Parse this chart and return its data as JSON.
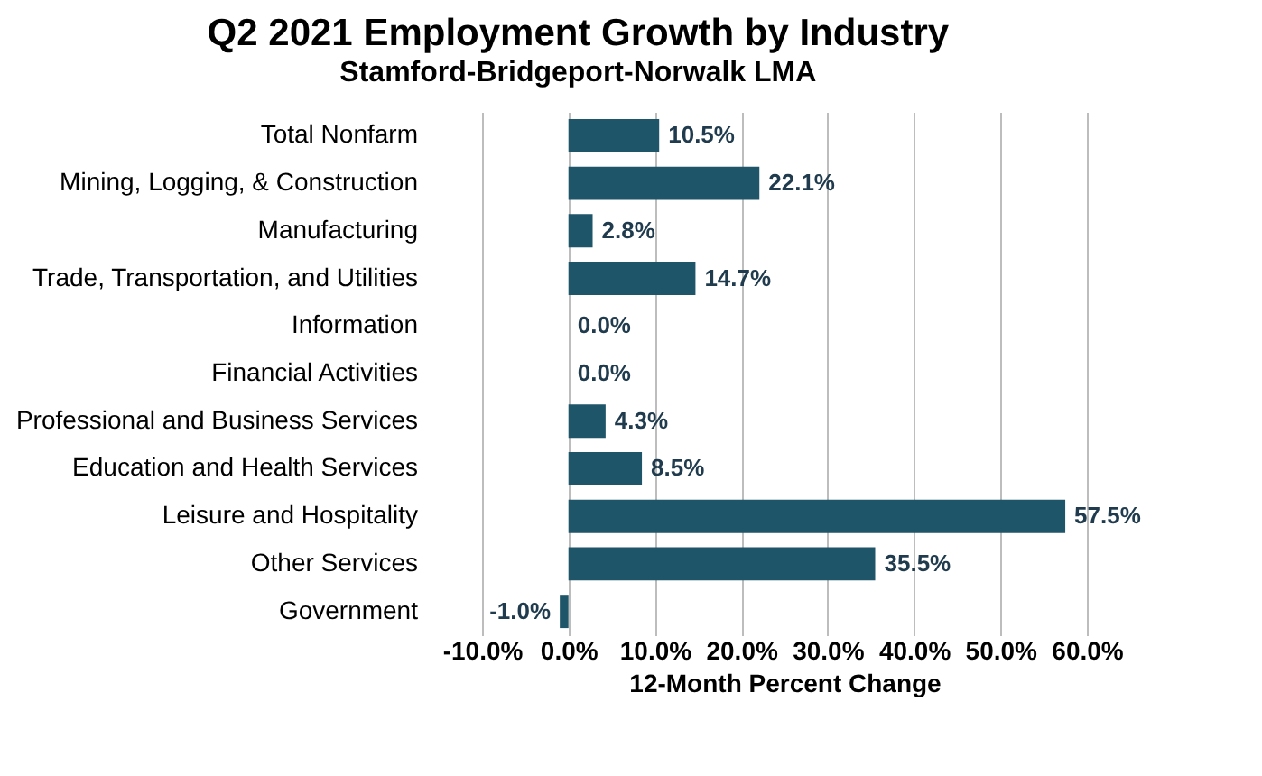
{
  "chart_data": {
    "type": "bar",
    "orientation": "horizontal",
    "title": "Q2 2021 Employment Growth by Industry",
    "subtitle": "Stamford-Bridgeport-Norwalk LMA",
    "xlabel": "12-Month Percent Change",
    "categories": [
      "Total Nonfarm",
      "Mining, Logging, & Construction",
      "Manufacturing",
      "Trade, Transportation, and Utilities",
      "Information",
      "Financial Activities",
      "Professional and Business Services",
      "Education and Health Services",
      "Leisure and Hospitality",
      "Other Services",
      "Government"
    ],
    "values": [
      10.5,
      22.1,
      2.8,
      14.7,
      0.0,
      0.0,
      4.3,
      8.5,
      57.5,
      35.5,
      -1.0
    ],
    "value_labels": [
      "10.5%",
      "22.1%",
      "2.8%",
      "14.7%",
      "0.0%",
      "0.0%",
      "4.3%",
      "8.5%",
      "57.5%",
      "35.5%",
      "-1.0%"
    ],
    "color": "#1f5568",
    "xlim": [
      -10,
      60
    ],
    "xticks": [
      {
        "value": -10,
        "label": "-10.0%"
      },
      {
        "value": 0,
        "label": "0.0%"
      },
      {
        "value": 10,
        "label": "10.0%"
      },
      {
        "value": 20,
        "label": "20.0%"
      },
      {
        "value": 30,
        "label": "30.0%"
      },
      {
        "value": 40,
        "label": "40.0%"
      },
      {
        "value": 50,
        "label": "50.0%"
      },
      {
        "value": 60,
        "label": "60.0%"
      }
    ],
    "grid": "x"
  }
}
